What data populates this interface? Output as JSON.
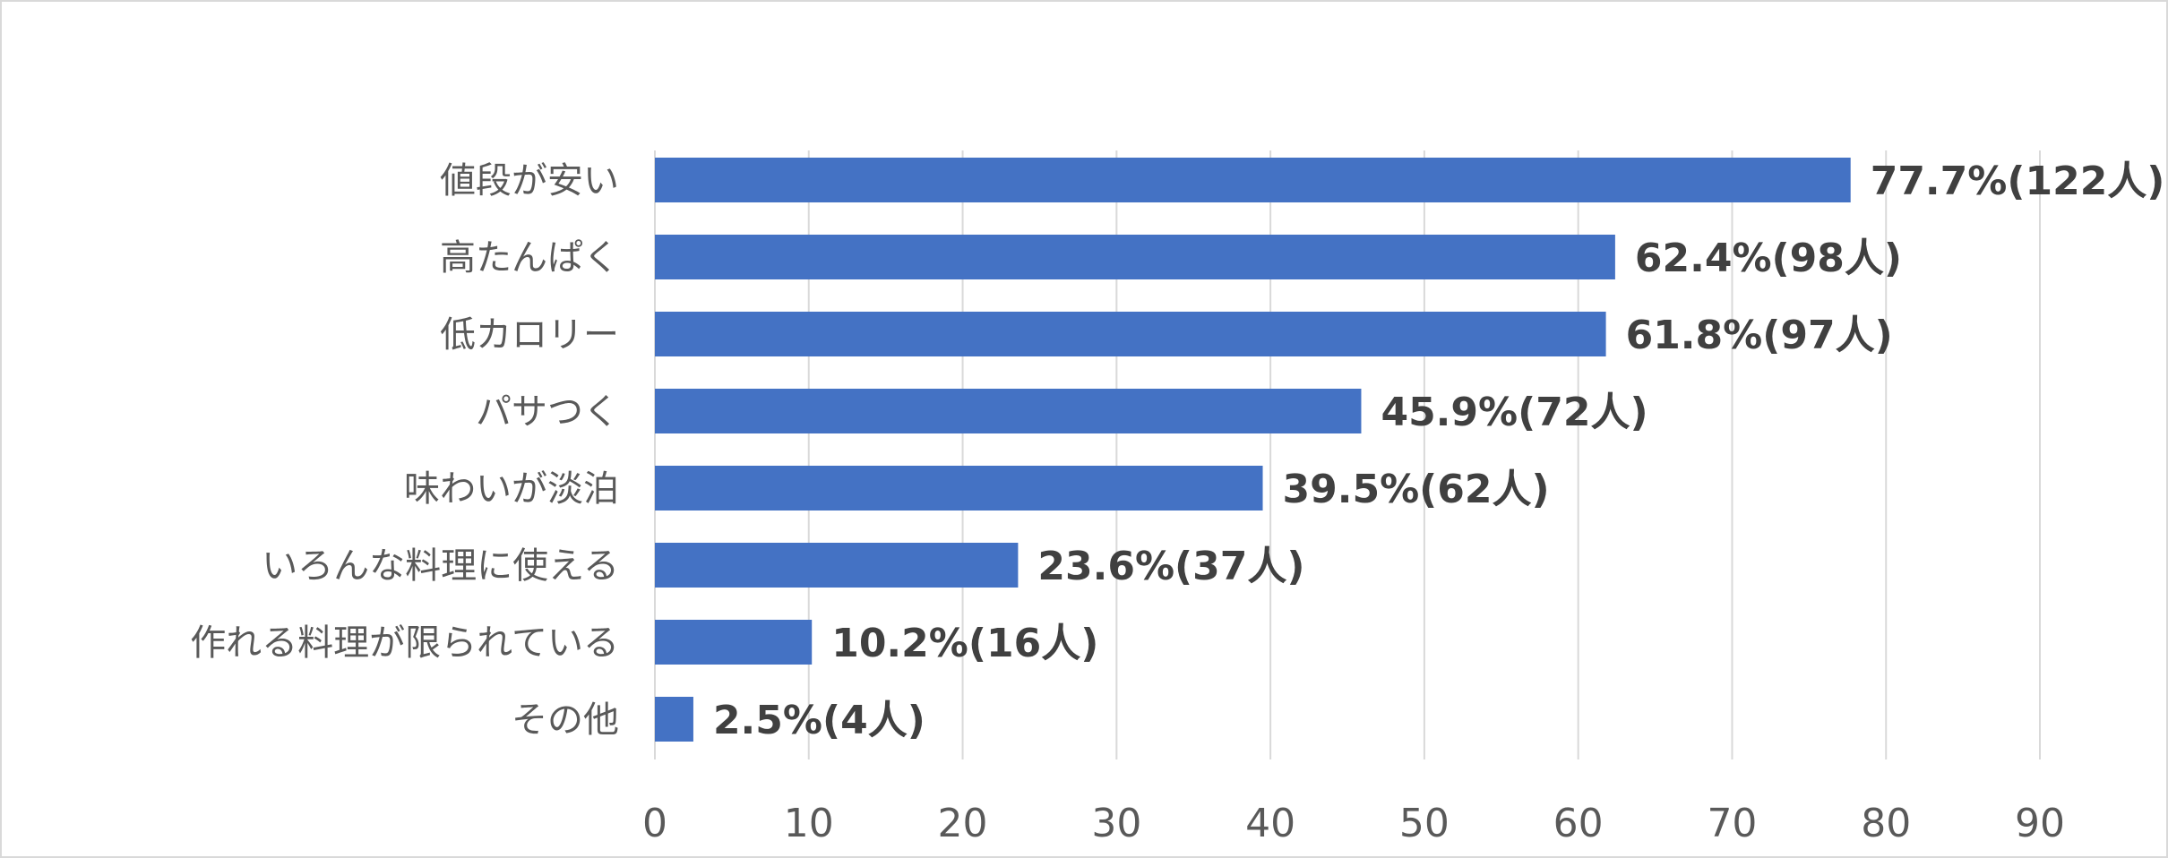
{
  "chart_data": {
    "type": "bar",
    "orientation": "horizontal",
    "title": "",
    "xlabel": "",
    "ylabel": "",
    "categories": [
      "値段が安い",
      "高たんぱく",
      "低カロリー",
      "パサつく",
      "味わいが淡泊",
      "いろんな料理に使える",
      "作れる料理が限られている",
      "その他"
    ],
    "values": [
      77.7,
      62.4,
      61.8,
      45.9,
      39.5,
      23.6,
      10.2,
      2.5
    ],
    "data_labels": [
      "77.7%(122人)",
      "62.4%(98人)",
      "61.8%(97人)",
      "45.9%(72人)",
      "39.5%(62人)",
      "23.6%(37人)",
      "10.2%(16人)",
      "2.5%(4人)"
    ],
    "xlim": [
      0,
      90
    ],
    "xticks": [
      0,
      10,
      20,
      30,
      40,
      50,
      60,
      70,
      80,
      90
    ],
    "grid": true,
    "legend": "none",
    "bar_color": "#4472C4",
    "grid_color": "#d9d9d9",
    "label_color": "#595959",
    "data_label_color": "#404040"
  }
}
